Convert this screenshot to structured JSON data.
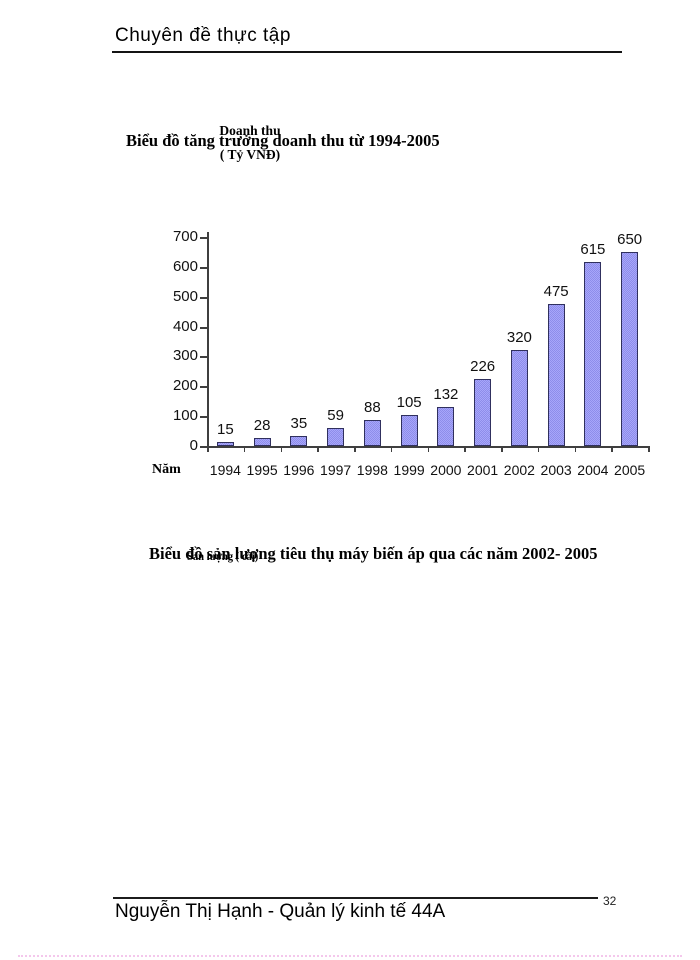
{
  "page": {
    "header": {
      "title": "Chuyên đề thực tập"
    },
    "footer": {
      "author": "Nguyễn Thị Hạnh - Quản lý kinh tế 44A",
      "page_number": "32"
    }
  },
  "chart_data": {
    "type": "bar",
    "title": "Biểu đồ tăng trưởng doanh thu từ 1994-2005",
    "y_axis_title_lines": [
      "Doanh thu",
      "( Tỷ VNĐ)"
    ],
    "x_axis_title": "Năm",
    "categories": [
      "1994",
      "1995",
      "1996",
      "1997",
      "1998",
      "1999",
      "2000",
      "2001",
      "2002",
      "2003",
      "2004",
      "2005"
    ],
    "values": [
      15,
      28,
      35,
      59,
      88,
      105,
      132,
      226,
      320,
      475,
      615,
      650
    ],
    "ylim": [
      0,
      700
    ],
    "y_ticks": [
      0,
      100,
      200,
      300,
      400,
      500,
      600,
      700
    ],
    "grid": false,
    "legend": "none",
    "bar_fill": "#9a99f2",
    "bar_border": "#30305e",
    "axis_color": "#3f3f3f"
  },
  "second_chart_caption": {
    "title": "Biểu đồ sản lượng tiêu thụ máy biến áp qua các năm 2002- 2005",
    "axis_label": "Sản lượng ( cái)"
  }
}
